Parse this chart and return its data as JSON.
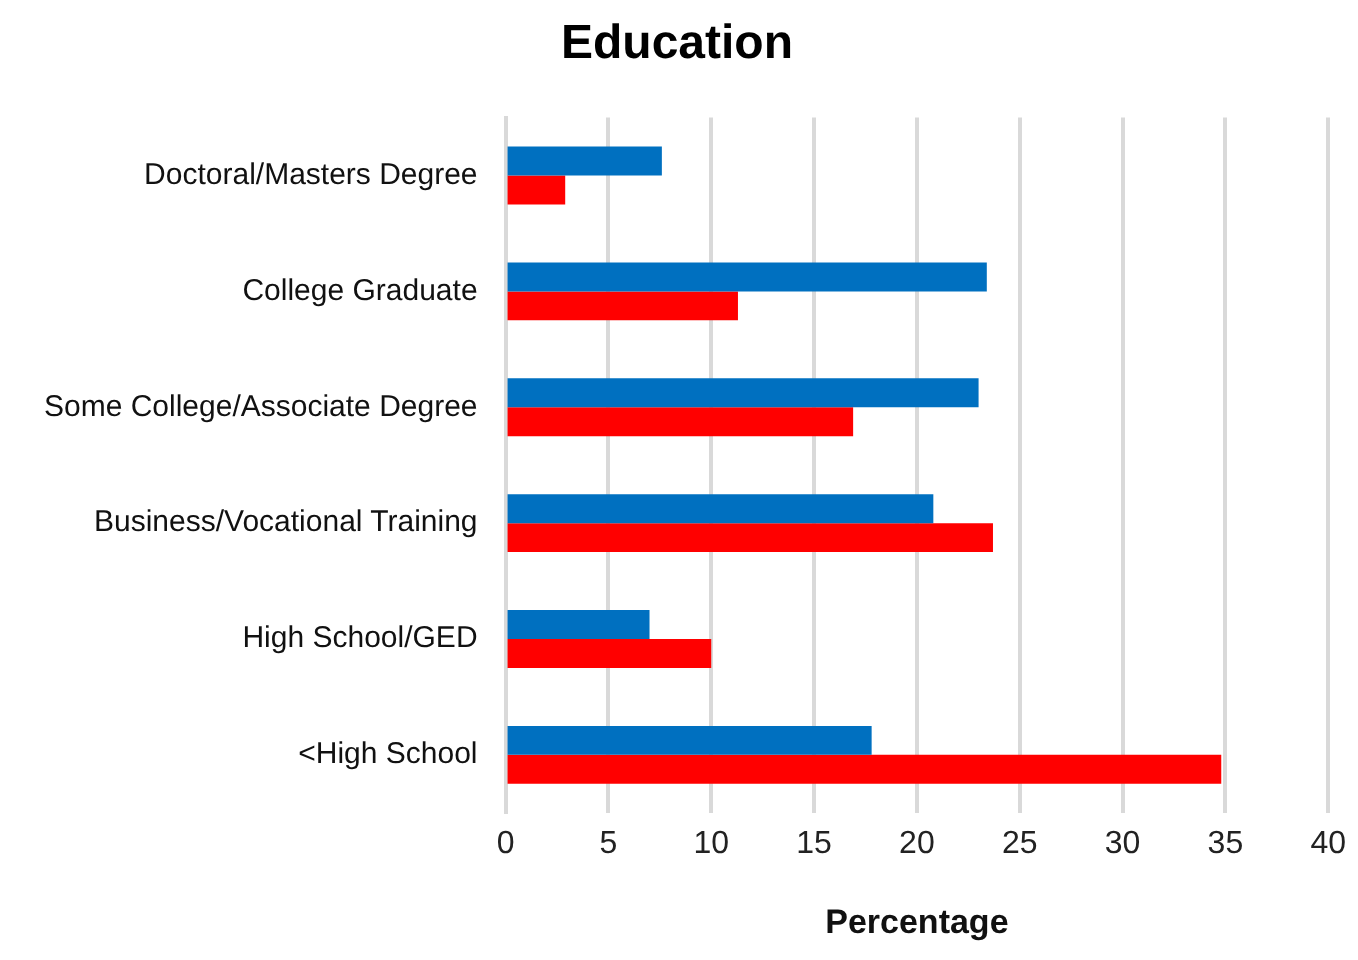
{
  "chart_data": {
    "type": "bar",
    "orientation": "horizontal",
    "title": "Education",
    "xlabel": "Percentage",
    "categories": [
      "Doctoral/Masters Degree",
      "College Graduate",
      "Some College/Associate Degree",
      "Business/Vocational Training",
      "High School/GED",
      "<High School"
    ],
    "series": [
      {
        "color": "#0070c0",
        "values": [
          7.6,
          23.4,
          23.0,
          20.8,
          7.0,
          17.8
        ]
      },
      {
        "color": "#ff0000",
        "values": [
          2.9,
          11.3,
          16.9,
          23.7,
          10.0,
          34.8
        ]
      }
    ],
    "xlim": [
      0,
      40
    ],
    "xticks": [
      0,
      5,
      10,
      15,
      20,
      25,
      30,
      35,
      40
    ],
    "grid": "x",
    "legend": false
  }
}
